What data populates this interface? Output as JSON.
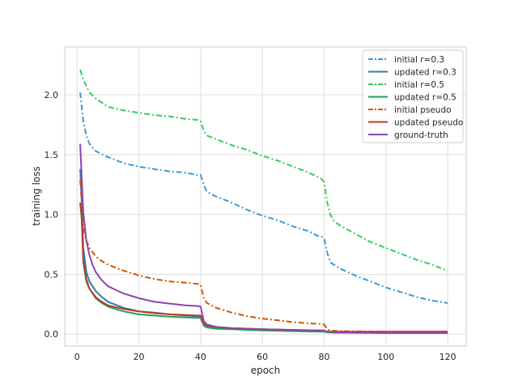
{
  "chart_data": {
    "type": "line",
    "title": "",
    "xlabel": "epoch",
    "ylabel": "training loss",
    "xlim": [
      -4,
      126
    ],
    "ylim": [
      -0.1,
      2.4
    ],
    "xticks": [
      0,
      20,
      40,
      60,
      80,
      100,
      120
    ],
    "yticks": [
      0.0,
      0.5,
      1.0,
      1.5,
      2.0
    ],
    "xtick_labels": [
      "0",
      "20",
      "40",
      "60",
      "80",
      "100",
      "120"
    ],
    "ytick_labels": [
      "0.0",
      "0.5",
      "1.0",
      "1.5",
      "2.0"
    ],
    "grid": true,
    "legend_position": "top-right",
    "series": [
      {
        "name": "initial r=0.3",
        "color": "#3b9ad6",
        "dash": "dashdot",
        "points": [
          [
            1,
            2.02
          ],
          [
            2,
            1.78
          ],
          [
            3,
            1.66
          ],
          [
            4,
            1.59
          ],
          [
            6,
            1.53
          ],
          [
            10,
            1.48
          ],
          [
            15,
            1.43
          ],
          [
            20,
            1.4
          ],
          [
            25,
            1.38
          ],
          [
            30,
            1.36
          ],
          [
            35,
            1.35
          ],
          [
            39,
            1.33
          ],
          [
            40,
            1.33
          ],
          [
            41,
            1.25
          ],
          [
            42,
            1.19
          ],
          [
            45,
            1.15
          ],
          [
            50,
            1.1
          ],
          [
            55,
            1.04
          ],
          [
            60,
            0.99
          ],
          [
            65,
            0.95
          ],
          [
            70,
            0.9
          ],
          [
            75,
            0.86
          ],
          [
            78,
            0.82
          ],
          [
            79,
            0.82
          ],
          [
            80,
            0.8
          ],
          [
            81,
            0.68
          ],
          [
            82,
            0.6
          ],
          [
            85,
            0.55
          ],
          [
            90,
            0.49
          ],
          [
            95,
            0.44
          ],
          [
            100,
            0.39
          ],
          [
            105,
            0.35
          ],
          [
            110,
            0.31
          ],
          [
            115,
            0.28
          ],
          [
            120,
            0.26
          ]
        ]
      },
      {
        "name": "updated r=0.3",
        "color": "#2e7bb6",
        "dash": "solid",
        "points": [
          [
            1,
            1.38
          ],
          [
            1.5,
            1.1
          ],
          [
            2,
            0.72
          ],
          [
            3,
            0.52
          ],
          [
            4,
            0.44
          ],
          [
            6,
            0.36
          ],
          [
            8,
            0.31
          ],
          [
            10,
            0.27
          ],
          [
            15,
            0.22
          ],
          [
            20,
            0.19
          ],
          [
            25,
            0.18
          ],
          [
            30,
            0.165
          ],
          [
            35,
            0.155
          ],
          [
            39,
            0.15
          ],
          [
            40,
            0.145
          ],
          [
            41,
            0.08
          ],
          [
            42,
            0.06
          ],
          [
            45,
            0.05
          ],
          [
            50,
            0.045
          ],
          [
            60,
            0.035
          ],
          [
            70,
            0.03
          ],
          [
            79,
            0.025
          ],
          [
            80,
            0.025
          ],
          [
            81,
            0.015
          ],
          [
            85,
            0.012
          ],
          [
            100,
            0.01
          ],
          [
            120,
            0.01
          ]
        ]
      },
      {
        "name": "initial r=0.5",
        "color": "#33cc66",
        "dash": "dashdot",
        "points": [
          [
            1,
            2.21
          ],
          [
            2,
            2.13
          ],
          [
            3,
            2.07
          ],
          [
            4,
            2.02
          ],
          [
            6,
            1.97
          ],
          [
            10,
            1.9
          ],
          [
            15,
            1.87
          ],
          [
            20,
            1.85
          ],
          [
            25,
            1.83
          ],
          [
            30,
            1.82
          ],
          [
            35,
            1.8
          ],
          [
            39,
            1.79
          ],
          [
            40,
            1.78
          ],
          [
            41,
            1.7
          ],
          [
            42,
            1.66
          ],
          [
            45,
            1.63
          ],
          [
            50,
            1.58
          ],
          [
            55,
            1.54
          ],
          [
            60,
            1.49
          ],
          [
            65,
            1.45
          ],
          [
            70,
            1.4
          ],
          [
            75,
            1.35
          ],
          [
            79,
            1.3
          ],
          [
            80,
            1.27
          ],
          [
            81,
            1.1
          ],
          [
            82,
            1.0
          ],
          [
            83,
            0.95
          ],
          [
            85,
            0.91
          ],
          [
            90,
            0.84
          ],
          [
            95,
            0.77
          ],
          [
            100,
            0.72
          ],
          [
            105,
            0.67
          ],
          [
            110,
            0.62
          ],
          [
            115,
            0.58
          ],
          [
            120,
            0.53
          ]
        ]
      },
      {
        "name": "updated r=0.5",
        "color": "#22a050",
        "dash": "solid",
        "points": [
          [
            1,
            1.1
          ],
          [
            1.5,
            0.95
          ],
          [
            2,
            0.6
          ],
          [
            3,
            0.44
          ],
          [
            4,
            0.38
          ],
          [
            6,
            0.3
          ],
          [
            8,
            0.26
          ],
          [
            10,
            0.23
          ],
          [
            15,
            0.19
          ],
          [
            20,
            0.165
          ],
          [
            25,
            0.155
          ],
          [
            30,
            0.145
          ],
          [
            35,
            0.14
          ],
          [
            39,
            0.135
          ],
          [
            40,
            0.135
          ],
          [
            41,
            0.07
          ],
          [
            42,
            0.055
          ],
          [
            45,
            0.045
          ],
          [
            50,
            0.04
          ],
          [
            60,
            0.03
          ],
          [
            70,
            0.025
          ],
          [
            79,
            0.02
          ],
          [
            80,
            0.02
          ],
          [
            81,
            0.015
          ],
          [
            85,
            0.012
          ],
          [
            100,
            0.01
          ],
          [
            120,
            0.01
          ]
        ]
      },
      {
        "name": "initial pseudo",
        "color": "#d45500",
        "dash": "dashdot",
        "points": [
          [
            1,
            1.29
          ],
          [
            2,
            0.9
          ],
          [
            3,
            0.78
          ],
          [
            4,
            0.72
          ],
          [
            6,
            0.65
          ],
          [
            8,
            0.61
          ],
          [
            10,
            0.58
          ],
          [
            15,
            0.53
          ],
          [
            20,
            0.49
          ],
          [
            25,
            0.46
          ],
          [
            30,
            0.44
          ],
          [
            35,
            0.43
          ],
          [
            39,
            0.42
          ],
          [
            40,
            0.41
          ],
          [
            41,
            0.3
          ],
          [
            42,
            0.26
          ],
          [
            45,
            0.22
          ],
          [
            50,
            0.18
          ],
          [
            55,
            0.15
          ],
          [
            60,
            0.13
          ],
          [
            65,
            0.115
          ],
          [
            70,
            0.1
          ],
          [
            75,
            0.09
          ],
          [
            79,
            0.085
          ],
          [
            80,
            0.08
          ],
          [
            81,
            0.04
          ],
          [
            82,
            0.03
          ],
          [
            85,
            0.025
          ],
          [
            100,
            0.02
          ],
          [
            120,
            0.02
          ]
        ]
      },
      {
        "name": "updated pseudo",
        "color": "#c0392b",
        "dash": "solid",
        "points": [
          [
            1,
            1.09
          ],
          [
            1.5,
            1.0
          ],
          [
            2,
            0.62
          ],
          [
            3,
            0.46
          ],
          [
            4,
            0.38
          ],
          [
            6,
            0.31
          ],
          [
            8,
            0.27
          ],
          [
            10,
            0.24
          ],
          [
            15,
            0.21
          ],
          [
            20,
            0.19
          ],
          [
            25,
            0.175
          ],
          [
            30,
            0.165
          ],
          [
            35,
            0.16
          ],
          [
            39,
            0.155
          ],
          [
            40,
            0.155
          ],
          [
            41,
            0.09
          ],
          [
            42,
            0.07
          ],
          [
            45,
            0.06
          ],
          [
            50,
            0.05
          ],
          [
            60,
            0.04
          ],
          [
            70,
            0.035
          ],
          [
            79,
            0.03
          ],
          [
            80,
            0.03
          ],
          [
            81,
            0.02
          ],
          [
            85,
            0.02
          ],
          [
            100,
            0.02
          ],
          [
            120,
            0.02
          ]
        ]
      },
      {
        "name": "ground-truth",
        "color": "#8e44ad",
        "dash": "solid",
        "points": [
          [
            1,
            1.59
          ],
          [
            1.5,
            1.3
          ],
          [
            2,
            1.02
          ],
          [
            3,
            0.78
          ],
          [
            4,
            0.66
          ],
          [
            5,
            0.58
          ],
          [
            6,
            0.52
          ],
          [
            8,
            0.45
          ],
          [
            10,
            0.4
          ],
          [
            15,
            0.34
          ],
          [
            20,
            0.3
          ],
          [
            25,
            0.27
          ],
          [
            30,
            0.255
          ],
          [
            35,
            0.24
          ],
          [
            39,
            0.235
          ],
          [
            40,
            0.23
          ],
          [
            41,
            0.11
          ],
          [
            42,
            0.08
          ],
          [
            45,
            0.06
          ],
          [
            50,
            0.05
          ],
          [
            60,
            0.04
          ],
          [
            70,
            0.035
          ],
          [
            79,
            0.03
          ],
          [
            80,
            0.03
          ],
          [
            81,
            0.02
          ],
          [
            85,
            0.015
          ],
          [
            100,
            0.01
          ],
          [
            120,
            0.01
          ]
        ]
      }
    ]
  }
}
